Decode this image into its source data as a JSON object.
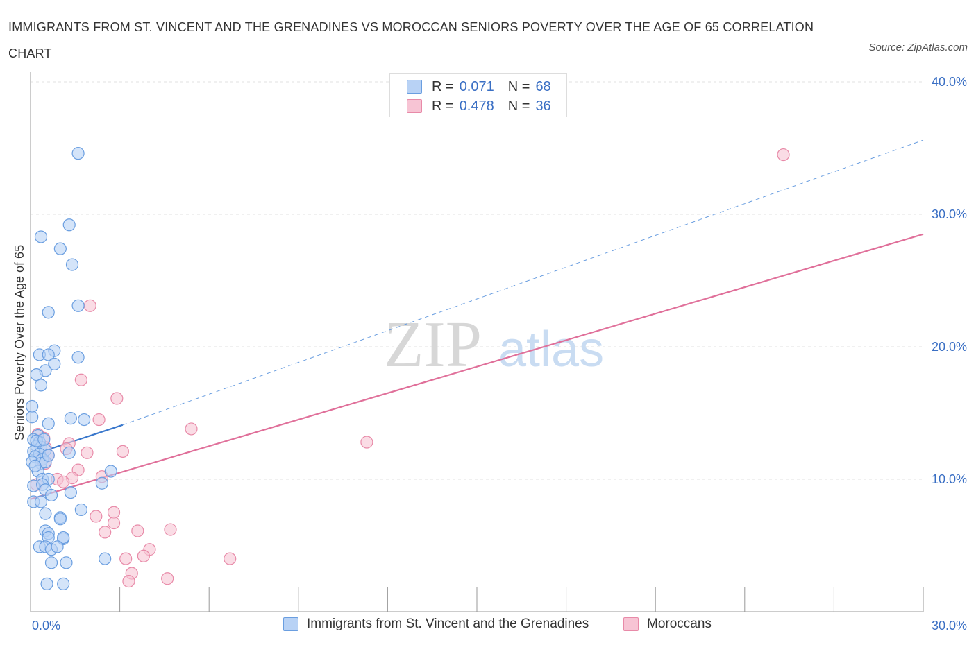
{
  "header": {
    "title": "IMMIGRANTS FROM ST. VINCENT AND THE GRENADINES VS MOROCCAN SENIORS POVERTY OVER THE AGE OF 65 CORRELATION CHART",
    "source": "Source: ZipAtlas.com"
  },
  "legend": {
    "rows": [
      {
        "r_label": "R =",
        "r_value": "0.071",
        "n_label": "N =",
        "n_value": "68"
      },
      {
        "r_label": "R =",
        "r_value": "0.478",
        "n_label": "N =",
        "n_value": "36"
      }
    ]
  },
  "bottom_legend": [
    "Immigrants from St. Vincent and the Grenadines",
    "Moroccans"
  ],
  "watermark": {
    "zip": "ZIP",
    "atlas": "atlas"
  },
  "colors": {
    "blue_fill": "#b8d2f5",
    "blue_stroke": "#6a9ee0",
    "blue_line": "#3a78cc",
    "pink_fill": "#f7c4d4",
    "pink_stroke": "#e88aa8",
    "pink_line": "#e0709a",
    "tick_text": "#3a6fc4"
  },
  "chart_data": {
    "type": "scatter",
    "xlabel": "",
    "ylabel": "Seniors Poverty Over the Age of 65",
    "xlim": [
      0,
      30
    ],
    "ylim": [
      0,
      40
    ],
    "x_ticks": [
      "0.0%",
      "30.0%"
    ],
    "y_ticks": [
      {
        "value": 10,
        "label": "10.0%"
      },
      {
        "value": 20,
        "label": "20.0%"
      },
      {
        "value": 30,
        "label": "30.0%"
      },
      {
        "value": 40,
        "label": "40.0%"
      }
    ],
    "grid": true,
    "series": [
      {
        "name": "Immigrants from St. Vincent and the Grenadines",
        "points": [
          [
            1.6,
            34.6
          ],
          [
            0.35,
            28.3
          ],
          [
            1.3,
            29.2
          ],
          [
            1.0,
            27.4
          ],
          [
            1.4,
            26.2
          ],
          [
            1.6,
            23.1
          ],
          [
            0.6,
            22.6
          ],
          [
            0.8,
            19.7
          ],
          [
            0.3,
            19.4
          ],
          [
            0.6,
            19.4
          ],
          [
            1.6,
            19.2
          ],
          [
            0.8,
            18.7
          ],
          [
            0.5,
            18.2
          ],
          [
            0.2,
            17.9
          ],
          [
            0.35,
            17.1
          ],
          [
            0.05,
            15.5
          ],
          [
            0.05,
            14.7
          ],
          [
            1.35,
            14.6
          ],
          [
            1.8,
            14.5
          ],
          [
            0.6,
            14.2
          ],
          [
            0.25,
            13.3
          ],
          [
            0.1,
            13.0
          ],
          [
            0.3,
            12.8
          ],
          [
            0.2,
            12.5
          ],
          [
            0.35,
            12.4
          ],
          [
            0.5,
            12.2
          ],
          [
            0.1,
            12.1
          ],
          [
            0.3,
            11.9
          ],
          [
            0.15,
            11.7
          ],
          [
            0.4,
            11.5
          ],
          [
            0.05,
            11.3
          ],
          [
            0.35,
            11.2
          ],
          [
            0.5,
            11.3
          ],
          [
            1.3,
            12.0
          ],
          [
            0.25,
            10.6
          ],
          [
            2.7,
            10.6
          ],
          [
            0.4,
            10.0
          ],
          [
            0.6,
            10.0
          ],
          [
            0.1,
            9.5
          ],
          [
            0.4,
            9.6
          ],
          [
            2.4,
            9.7
          ],
          [
            0.5,
            9.2
          ],
          [
            0.7,
            8.8
          ],
          [
            1.35,
            9.0
          ],
          [
            0.1,
            8.3
          ],
          [
            0.35,
            8.3
          ],
          [
            1.7,
            7.7
          ],
          [
            0.5,
            7.4
          ],
          [
            1.0,
            7.1
          ],
          [
            1.0,
            7.0
          ],
          [
            0.5,
            6.1
          ],
          [
            0.6,
            5.9
          ],
          [
            0.6,
            5.6
          ],
          [
            1.1,
            5.5
          ],
          [
            1.1,
            5.6
          ],
          [
            0.3,
            4.9
          ],
          [
            0.5,
            4.9
          ],
          [
            0.7,
            4.7
          ],
          [
            0.9,
            4.9
          ],
          [
            2.5,
            4.0
          ],
          [
            0.7,
            3.7
          ],
          [
            1.2,
            3.7
          ],
          [
            0.55,
            2.1
          ],
          [
            1.1,
            2.1
          ],
          [
            0.2,
            12.9
          ],
          [
            0.45,
            13.0
          ],
          [
            0.15,
            11.0
          ],
          [
            0.6,
            11.8
          ]
        ]
      },
      {
        "name": "Moroccans",
        "points": [
          [
            25.3,
            34.5
          ],
          [
            2.0,
            23.1
          ],
          [
            1.7,
            17.5
          ],
          [
            2.9,
            16.1
          ],
          [
            2.3,
            14.5
          ],
          [
            5.4,
            13.8
          ],
          [
            11.3,
            12.8
          ],
          [
            0.25,
            13.4
          ],
          [
            0.45,
            13.1
          ],
          [
            1.3,
            12.7
          ],
          [
            0.5,
            12.4
          ],
          [
            1.2,
            12.3
          ],
          [
            3.1,
            12.1
          ],
          [
            1.9,
            12.0
          ],
          [
            0.6,
            11.8
          ],
          [
            0.35,
            11.5
          ],
          [
            0.5,
            11.2
          ],
          [
            1.6,
            10.7
          ],
          [
            2.4,
            10.2
          ],
          [
            0.9,
            10.0
          ],
          [
            1.4,
            10.1
          ],
          [
            1.1,
            9.8
          ],
          [
            0.2,
            9.6
          ],
          [
            2.2,
            7.2
          ],
          [
            2.8,
            7.5
          ],
          [
            2.8,
            6.7
          ],
          [
            3.6,
            6.1
          ],
          [
            4.7,
            6.2
          ],
          [
            2.5,
            6.0
          ],
          [
            4.0,
            4.7
          ],
          [
            3.8,
            4.2
          ],
          [
            3.2,
            4.0
          ],
          [
            6.7,
            4.0
          ],
          [
            3.4,
            2.9
          ],
          [
            3.3,
            2.3
          ],
          [
            4.6,
            2.5
          ]
        ]
      }
    ],
    "trendlines": [
      {
        "series": "Immigrants from St. Vincent and the Grenadines",
        "from": [
          0,
          11.8
        ],
        "to": [
          3.1,
          14.1
        ],
        "style": "solid"
      },
      {
        "series": "Immigrants from St. Vincent and the Grenadines",
        "from": [
          3.1,
          14.1
        ],
        "to": [
          30,
          35.6
        ],
        "style": "dashed"
      },
      {
        "series": "Moroccans",
        "from": [
          0,
          8.5
        ],
        "to": [
          30,
          28.5
        ],
        "style": "solid"
      }
    ]
  }
}
